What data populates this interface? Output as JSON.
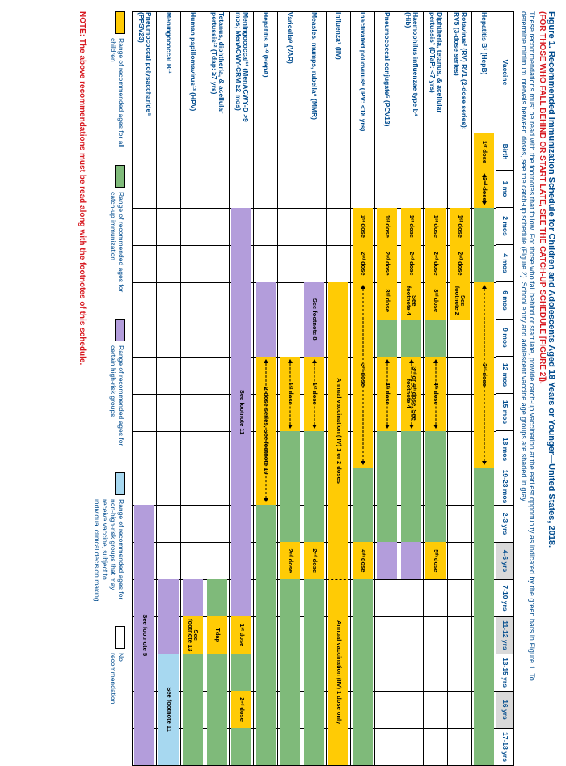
{
  "title": "Figure 1. Recommended Immunization Schedule for Children and Adolescents Aged 18 Years or Younger—United States, 2018.",
  "subtitle": "(FOR THOSE WHO FALL BEHIND OR START LATE, SEE THE CATCH-UP SCHEDULE [FIGURE 2]).",
  "intro": "These recommendations must be read with the footnotes that follow. For those who fall behind or start late, provide catch-up vaccination at the earliest opportunity as indicated by the green bars in Figure 1. To determine minimum intervals between doses, see the catch-up schedule (Figure 2). School entry and adolescent vaccine age groups are shaded in gray.",
  "colors": {
    "yellow": "#ffcb05",
    "green": "#7fba7a",
    "purple": "#b39ddb",
    "blue": "#a7d8f0",
    "headerBlue": "#004b8d",
    "red": "#d71920",
    "grayShade": "#d9d9d9"
  },
  "ages": [
    {
      "label": "Vaccine",
      "key": "vac"
    },
    {
      "label": "Birth"
    },
    {
      "label": "1 mo"
    },
    {
      "label": "2 mos"
    },
    {
      "label": "4 mos"
    },
    {
      "label": "6 mos"
    },
    {
      "label": "9 mos"
    },
    {
      "label": "12 mos"
    },
    {
      "label": "15 mos"
    },
    {
      "label": "18 mos"
    },
    {
      "label": "19-23 mos"
    },
    {
      "label": "2-3 yrs"
    },
    {
      "label": "4-6 yrs",
      "shade": true
    },
    {
      "label": "7-10 yrs"
    },
    {
      "label": "11-12 yrs",
      "shade": true
    },
    {
      "label": "13-15 yrs"
    },
    {
      "label": "16 yrs",
      "shade": true
    },
    {
      "label": "17-18 yrs"
    }
  ],
  "vaccines": [
    {
      "name": "Hepatitis B¹ (HepB)",
      "bars": [
        {
          "c": "yellow",
          "from": 0,
          "to": 1,
          "label": "1ˢᵗ dose"
        },
        {
          "c": "yellow",
          "from": 1,
          "to": 2,
          "label": "2ⁿᵈ dose",
          "arrow": true
        },
        {
          "c": "green",
          "from": 2,
          "to": 4
        },
        {
          "c": "yellow",
          "from": 4,
          "to": 9,
          "label": "3ʳᵈ dose",
          "arrow": true
        },
        {
          "c": "green",
          "from": 9,
          "to": 17
        }
      ]
    },
    {
      "name": "Rotavirus² (RV) RV1 (2-dose series); RV5 (3-dose series)",
      "bars": [
        {
          "c": "yellow",
          "from": 2,
          "to": 3,
          "label": "1ˢᵗ dose"
        },
        {
          "c": "yellow",
          "from": 3,
          "to": 4,
          "label": "2ⁿᵈ dose"
        },
        {
          "c": "yellow",
          "from": 4,
          "to": 5,
          "label": "See footnote 2",
          "wrap": true
        }
      ]
    },
    {
      "name": "Diphtheria, tetanus, & acellular pertussis³ (DTaP: <7 yrs)",
      "bars": [
        {
          "c": "yellow",
          "from": 2,
          "to": 3,
          "label": "1ˢᵗ dose"
        },
        {
          "c": "yellow",
          "from": 3,
          "to": 4,
          "label": "2ⁿᵈ dose"
        },
        {
          "c": "yellow",
          "from": 4,
          "to": 5,
          "label": "3ʳᵈ dose"
        },
        {
          "c": "green",
          "from": 5,
          "to": 6
        },
        {
          "c": "yellow",
          "from": 6,
          "to": 8,
          "label": "4ᵗʰ dose",
          "arrow": true
        },
        {
          "c": "green",
          "from": 8,
          "to": 11
        },
        {
          "c": "yellow",
          "from": 11,
          "to": 12,
          "label": "5ᵗʰ dose"
        }
      ]
    },
    {
      "name": "Haemophilus influenzae type b⁴ (Hib)",
      "bars": [
        {
          "c": "yellow",
          "from": 2,
          "to": 3,
          "label": "1ˢᵗ dose"
        },
        {
          "c": "yellow",
          "from": 3,
          "to": 4,
          "label": "2ⁿᵈ dose"
        },
        {
          "c": "yellow",
          "from": 4,
          "to": 5,
          "label": "See footnote 4",
          "wrap": true
        },
        {
          "c": "green",
          "from": 5,
          "to": 6
        },
        {
          "c": "yellow",
          "from": 6,
          "to": 8,
          "label": "3ʳᵈ or 4ᵗʰ dose, See footnote 4",
          "arrow": true,
          "wrap": true
        },
        {
          "c": "green",
          "from": 8,
          "to": 11
        },
        {
          "c": "purple",
          "from": 11,
          "to": 12
        }
      ]
    },
    {
      "name": "Pneumococcal conjugate⁵ (PCV13)",
      "bars": [
        {
          "c": "yellow",
          "from": 2,
          "to": 3,
          "label": "1ˢᵗ dose"
        },
        {
          "c": "yellow",
          "from": 3,
          "to": 4,
          "label": "2ⁿᵈ dose"
        },
        {
          "c": "yellow",
          "from": 4,
          "to": 5,
          "label": "3ʳᵈ dose"
        },
        {
          "c": "green",
          "from": 5,
          "to": 6
        },
        {
          "c": "yellow",
          "from": 6,
          "to": 8,
          "label": "4ᵗʰ dose",
          "arrow": true
        },
        {
          "c": "green",
          "from": 8,
          "to": 11
        },
        {
          "c": "purple",
          "from": 11,
          "to": 12
        }
      ]
    },
    {
      "name": "Inactivated poliovirus⁶ (IPV: <18 yrs)",
      "bars": [
        {
          "c": "yellow",
          "from": 2,
          "to": 3,
          "label": "1ˢᵗ dose"
        },
        {
          "c": "yellow",
          "from": 3,
          "to": 4,
          "label": "2ⁿᵈ dose"
        },
        {
          "c": "yellow",
          "from": 4,
          "to": 9,
          "label": "3ʳᵈ dose",
          "arrow": true
        },
        {
          "c": "green",
          "from": 9,
          "to": 11
        },
        {
          "c": "yellow",
          "from": 11,
          "to": 12,
          "label": "4ᵗʰ dose"
        },
        {
          "c": "green",
          "from": 12,
          "to": 17
        }
      ]
    },
    {
      "name": "Influenza⁷ (IIV)",
      "bars": [
        {
          "c": "yellow",
          "from": 4,
          "to": 12,
          "label": "Annual vaccination (IIV) 1 or 2 doses"
        },
        {
          "c": "yellow",
          "from": 12,
          "to": 17,
          "label": "Annual vaccination (IIV) 1 dose only",
          "wrap": true
        }
      ],
      "seams": [
        12
      ]
    },
    {
      "name": "Measles, mumps, rubella⁸ (MMR)",
      "bars": [
        {
          "c": "purple",
          "from": 4,
          "to": 6,
          "label": "See footnote 8"
        },
        {
          "c": "yellow",
          "from": 6,
          "to": 8,
          "label": "1ˢᵗ dose",
          "arrow": true
        },
        {
          "c": "green",
          "from": 8,
          "to": 11
        },
        {
          "c": "yellow",
          "from": 11,
          "to": 12,
          "label": "2ⁿᵈ dose"
        },
        {
          "c": "green",
          "from": 12,
          "to": 17
        }
      ]
    },
    {
      "name": "Varicella⁹ (VAR)",
      "bars": [
        {
          "c": "yellow",
          "from": 6,
          "to": 8,
          "label": "1ˢᵗ dose",
          "arrow": true
        },
        {
          "c": "green",
          "from": 8,
          "to": 11
        },
        {
          "c": "yellow",
          "from": 11,
          "to": 12,
          "label": "2ⁿᵈ dose"
        },
        {
          "c": "green",
          "from": 12,
          "to": 17
        }
      ]
    },
    {
      "name": "Hepatitis A¹⁰ (HepA)",
      "bars": [
        {
          "c": "purple",
          "from": 4,
          "to": 6
        },
        {
          "c": "yellow",
          "from": 6,
          "to": 10,
          "label": "2-dose series, See footnote 10",
          "arrow": true
        },
        {
          "c": "green",
          "from": 10,
          "to": 17
        }
      ]
    },
    {
      "name": "Meningococcal¹¹ (MenACWY-D >9 mos; MenACWY-CRM ≥2 mos)",
      "bars": [
        {
          "c": "purple",
          "from": 2,
          "to": 13,
          "label": "See footnote 11"
        },
        {
          "c": "yellow",
          "from": 13,
          "to": 14,
          "label": "1ˢᵗ dose"
        },
        {
          "c": "green",
          "from": 14,
          "to": 15
        },
        {
          "c": "yellow",
          "from": 15,
          "to": 16,
          "label": "2ⁿᵈ dose"
        },
        {
          "c": "green",
          "from": 16,
          "to": 17
        }
      ]
    },
    {
      "name": "Tetanus, diphtheria, & acellular pertussis¹² (Tdap: ≥7 yrs)",
      "bars": [
        {
          "c": "green",
          "from": 12,
          "to": 13
        },
        {
          "c": "yellow",
          "from": 13,
          "to": 14,
          "label": "Tdap"
        },
        {
          "c": "green",
          "from": 14,
          "to": 17
        }
      ]
    },
    {
      "name": "Human papillomavirus¹³ (HPV)",
      "bars": [
        {
          "c": "purple",
          "from": 12,
          "to": 13
        },
        {
          "c": "yellow",
          "from": 13,
          "to": 14,
          "label": "See footnote 13",
          "wrap": true
        },
        {
          "c": "green",
          "from": 14,
          "to": 17
        }
      ]
    },
    {
      "name": "Meningococcal B¹¹",
      "bars": [
        {
          "c": "purple",
          "from": 12,
          "to": 14
        },
        {
          "c": "blue",
          "from": 14,
          "to": 17,
          "label": "See footnote 11"
        }
      ]
    },
    {
      "name": "Pneumococcal polysaccharide⁵ (PPSV23)",
      "bars": [
        {
          "c": "purple",
          "from": 10,
          "to": 17,
          "label": "See footnote 5"
        }
      ]
    }
  ],
  "legend": [
    {
      "c": "yellow",
      "text": "Range of recommended ages for all children"
    },
    {
      "c": "green",
      "text": "Range of recommended ages for catch-up immunization"
    },
    {
      "c": "purple",
      "text": "Range of recommended ages for certain high-risk groups"
    },
    {
      "c": "blue",
      "text": "Range of recommended ages for non-high-risk groups that may receive vaccine, subject to individual clinical decision making"
    },
    {
      "c": "white",
      "text": "No recommendation"
    }
  ],
  "note": "NOTE: The above recommendations must be read along with the footnotes of this schedule."
}
